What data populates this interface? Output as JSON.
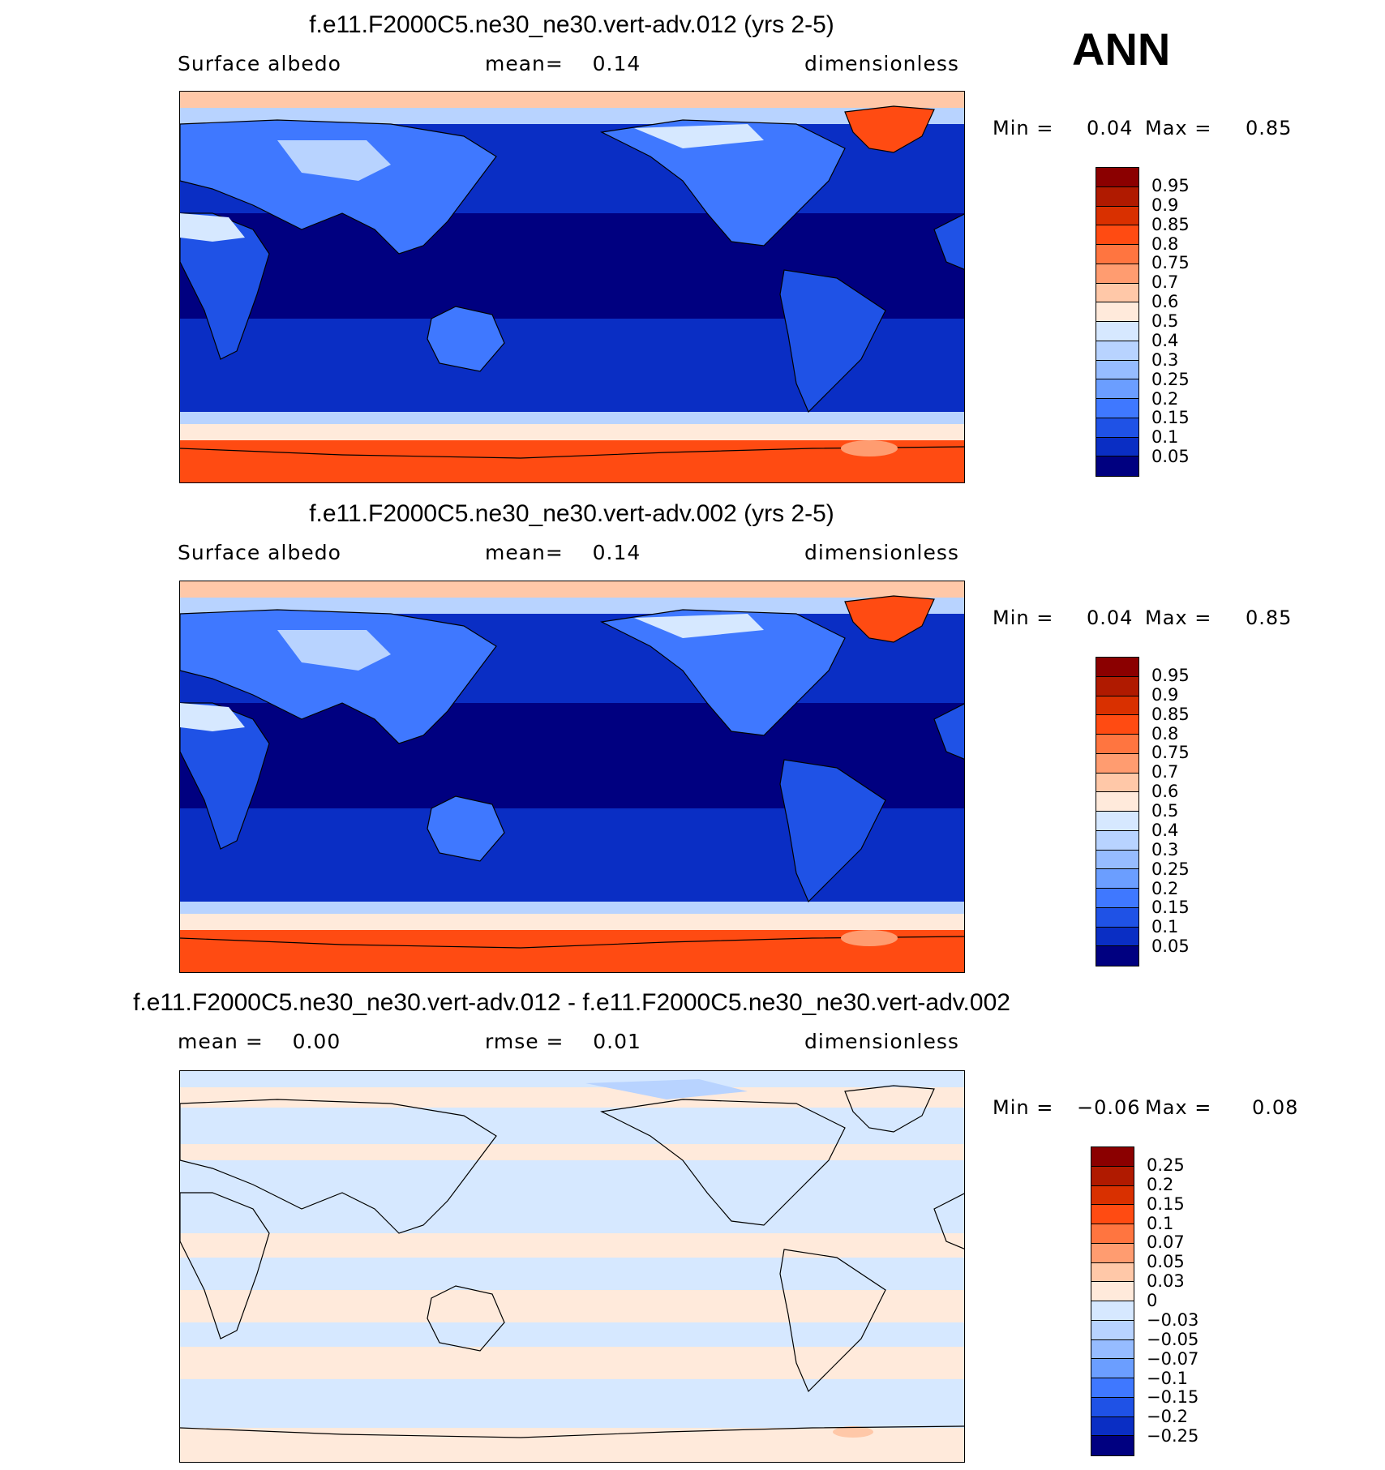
{
  "season": "ANN",
  "panels": [
    {
      "title": "f.e11.F2000C5.ne30_ne30.vert-adv.012 (yrs 2-5)",
      "left": "Surface albedo",
      "mid": "mean=    0.14",
      "right": "dimensionless",
      "min_label": "Min =",
      "min_value": "0.04",
      "max_label": "Max =",
      "max_value": "0.85"
    },
    {
      "title": "f.e11.F2000C5.ne30_ne30.vert-adv.002 (yrs 2-5)",
      "left": "Surface albedo",
      "mid": "mean=    0.14",
      "right": "dimensionless",
      "min_label": "Min =",
      "min_value": "0.04",
      "max_label": "Max =",
      "max_value": "0.85"
    },
    {
      "title": "f.e11.F2000C5.ne30_ne30.vert-adv.012 - f.e11.F2000C5.ne30_ne30.vert-adv.002",
      "left": "mean =    0.00",
      "mid": "rmse =    0.01",
      "right": "dimensionless",
      "min_label": "Min =",
      "min_value": "−0.06",
      "max_label": "Max =",
      "max_value": "0.08"
    }
  ],
  "colorbars": {
    "absolute": {
      "labels": [
        "0.95",
        "0.9",
        "0.85",
        "0.8",
        "0.75",
        "0.7",
        "0.6",
        "0.5",
        "0.4",
        "0.3",
        "0.25",
        "0.2",
        "0.15",
        "0.1",
        "0.05"
      ],
      "colors": [
        "#8b0000",
        "#b01a00",
        "#d93000",
        "#ff4b12",
        "#ff7540",
        "#ff9c70",
        "#ffc8a8",
        "#ffeadb",
        "#d6e8ff",
        "#b8d3ff",
        "#96bcff",
        "#6b9eff",
        "#3f78ff",
        "#1f52e6",
        "#0a2ec4",
        "#000080"
      ]
    },
    "difference": {
      "labels": [
        "0.25",
        "0.2",
        "0.15",
        "0.1",
        "0.07",
        "0.05",
        "0.03",
        "0",
        "−0.03",
        "−0.05",
        "−0.07",
        "−0.1",
        "−0.15",
        "−0.2",
        "−0.25"
      ],
      "colors": [
        "#8b0000",
        "#b01a00",
        "#d93000",
        "#ff4b12",
        "#ff7540",
        "#ff9c70",
        "#ffc8a8",
        "#ffeadb",
        "#d6e8ff",
        "#b8d3ff",
        "#96bcff",
        "#6b9eff",
        "#3f78ff",
        "#1f52e6",
        "#0a2ec4",
        "#000080"
      ]
    }
  }
}
